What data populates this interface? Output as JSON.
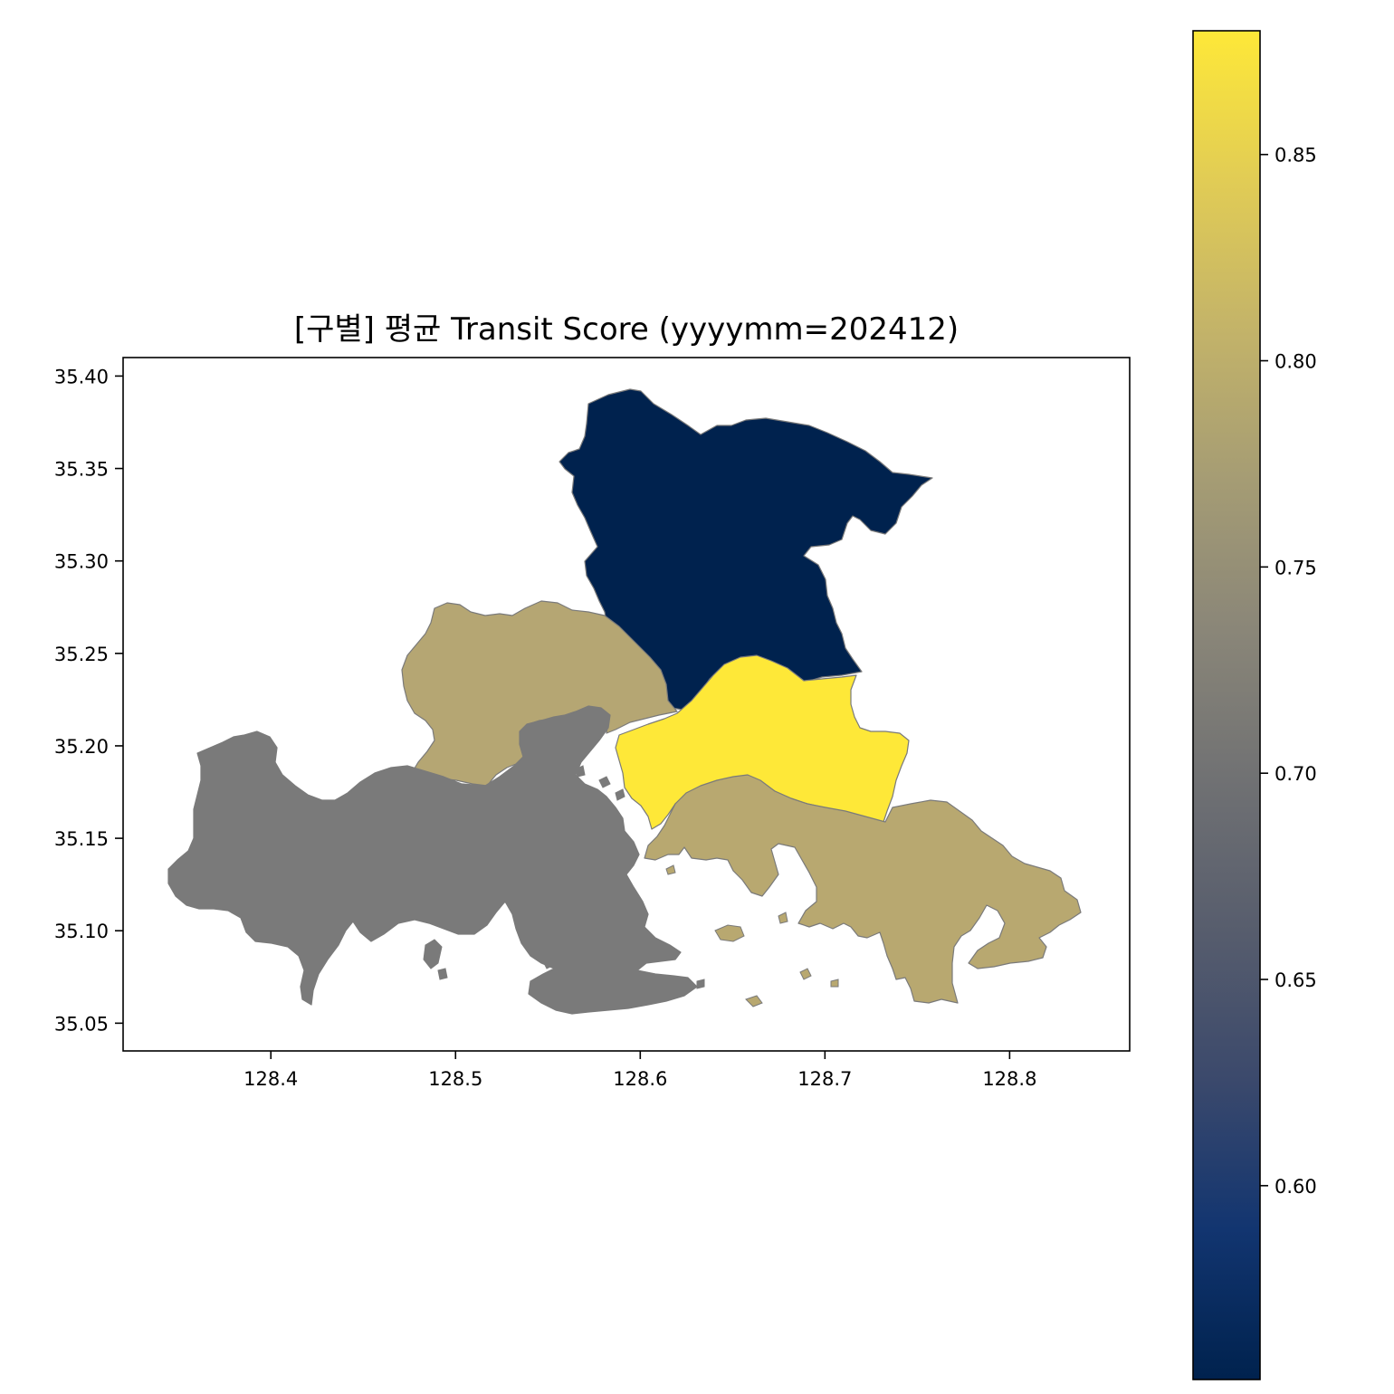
{
  "chart_data": {
    "type": "choropleth",
    "title": "[구별] 평균 Transit Score (yyyymm=202412)",
    "xlabel": "",
    "ylabel": "",
    "xlim": [
      128.32,
      128.865
    ],
    "ylim": [
      35.035,
      35.41
    ],
    "x_ticks": [
      128.4,
      128.5,
      128.6,
      128.7,
      128.8
    ],
    "x_tick_labels": [
      "128.4",
      "128.5",
      "128.6",
      "128.7",
      "128.8"
    ],
    "y_ticks": [
      35.05,
      35.1,
      35.15,
      35.2,
      35.25,
      35.3,
      35.35,
      35.4
    ],
    "y_tick_labels": [
      "35.05",
      "35.10",
      "35.15",
      "35.20",
      "35.25",
      "35.30",
      "35.35",
      "35.40"
    ],
    "colormap": "cividis",
    "colorbar": {
      "min": 0.553,
      "max": 0.88,
      "ticks": [
        0.6,
        0.65,
        0.7,
        0.75,
        0.8,
        0.85
      ],
      "tick_labels": [
        "0.60",
        "0.65",
        "0.70",
        "0.75",
        "0.80",
        "0.85"
      ],
      "stops": [
        "#00224e",
        "#123570",
        "#3b496c",
        "#575d6d",
        "#707173",
        "#8a8678",
        "#a59c74",
        "#c3b369",
        "#e1cc55",
        "#fee838"
      ]
    },
    "regions": [
      {
        "id": "north",
        "value": 0.553,
        "color": "#00224e"
      },
      {
        "id": "west-center",
        "value": 0.793,
        "color": "#b5a673"
      },
      {
        "id": "southwest",
        "value": 0.71,
        "color": "#7a7a7a"
      },
      {
        "id": "east-center",
        "value": 0.88,
        "color": "#fee838"
      },
      {
        "id": "southeast",
        "value": 0.795,
        "color": "#b8a870"
      }
    ]
  }
}
